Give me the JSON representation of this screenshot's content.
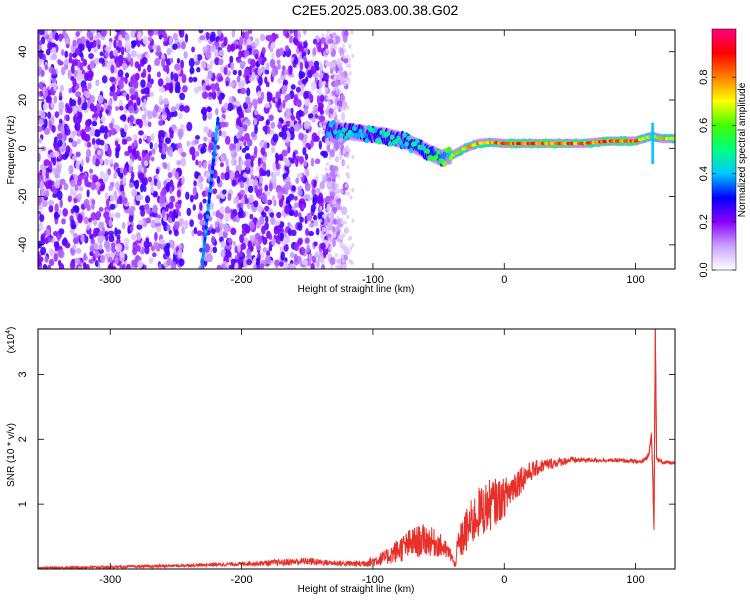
{
  "title": "C2E5.2025.083.00.38.G02",
  "chart_data": [
    {
      "type": "heatmap",
      "xlabel": "Height of straight line (km)",
      "ylabel": "Frequency (Hz)",
      "xlim": [
        -355,
        130
      ],
      "ylim": [
        -50,
        49
      ],
      "xticks": [
        -300,
        -200,
        -100,
        0,
        100
      ],
      "yticks": [
        -40,
        -20,
        0,
        20,
        40
      ],
      "colorbar": {
        "label": "Normalized spectral amplitude",
        "range": [
          0,
          1
        ],
        "ticks": [
          "0.0",
          "0.2",
          "0.4",
          "0.6",
          "0.8"
        ],
        "ticks_values": [
          0,
          0.2,
          0.4,
          0.6,
          0.8
        ],
        "colors": [
          "#ffffff",
          "#c9a3ff",
          "#8a00ff",
          "#0000ff",
          "#00c8ff",
          "#00ff80",
          "#40ff00",
          "#ffff00",
          "#ff8000",
          "#ff0000",
          "#ff007f"
        ]
      },
      "ridge": [
        {
          "x": -135,
          "y": 8,
          "amp": 0.45
        },
        {
          "x": -120,
          "y": 7,
          "amp": 0.5
        },
        {
          "x": -105,
          "y": 6,
          "amp": 0.5
        },
        {
          "x": -90,
          "y": 5,
          "amp": 0.5
        },
        {
          "x": -75,
          "y": 3,
          "amp": 0.5
        },
        {
          "x": -60,
          "y": -1,
          "amp": 0.55
        },
        {
          "x": -48,
          "y": -4,
          "amp": 0.6
        },
        {
          "x": -40,
          "y": -3,
          "amp": 0.75
        },
        {
          "x": -30,
          "y": 0,
          "amp": 0.8
        },
        {
          "x": -20,
          "y": 2,
          "amp": 0.85
        },
        {
          "x": -10,
          "y": 2.5,
          "amp": 0.85
        },
        {
          "x": 0,
          "y": 2,
          "amp": 0.95
        },
        {
          "x": 20,
          "y": 2,
          "amp": 0.95
        },
        {
          "x": 40,
          "y": 2,
          "amp": 0.95
        },
        {
          "x": 60,
          "y": 2,
          "amp": 0.9
        },
        {
          "x": 80,
          "y": 3,
          "amp": 0.95
        },
        {
          "x": 100,
          "y": 3,
          "amp": 0.95
        },
        {
          "x": 112,
          "y": 5,
          "amp": 0.7
        },
        {
          "x": 120,
          "y": 4,
          "amp": 0.8
        },
        {
          "x": 130,
          "y": 4,
          "amp": 0.8
        }
      ]
    },
    {
      "type": "line",
      "xlabel": "Height of straight line (km)",
      "ylabel": "SNR (10 * v/v)",
      "y_exponent_label": "(x10",
      "y_exponent_power": "4",
      "xlim": [
        -355,
        130
      ],
      "ylim": [
        0,
        3.7
      ],
      "xticks": [
        -300,
        -200,
        -100,
        0,
        100
      ],
      "yticks": [
        1,
        2,
        3
      ],
      "line_color": "#e8302a",
      "series": [
        {
          "x": [
            -355,
            -300,
            -250,
            -200,
            -170,
            -150,
            -130,
            -110,
            -100,
            -90,
            -80,
            -70,
            -60,
            -50,
            -45,
            -40,
            -38,
            -35,
            -30,
            -20,
            -10,
            0,
            10,
            20,
            30,
            50,
            70,
            90,
            105,
            110,
            112,
            113,
            114,
            115,
            116,
            120,
            130
          ],
          "y": [
            0.02,
            0.03,
            0.05,
            0.08,
            0.1,
            0.12,
            0.09,
            0.08,
            0.12,
            0.18,
            0.3,
            0.4,
            0.45,
            0.38,
            0.3,
            0.2,
            0.05,
            0.35,
            0.55,
            0.85,
            1.0,
            1.1,
            1.35,
            1.5,
            1.6,
            1.68,
            1.68,
            1.67,
            1.65,
            1.75,
            2.1,
            1.5,
            0.6,
            3.7,
            1.7,
            1.65,
            1.63
          ],
          "noise": [
            0.01,
            0.02,
            0.02,
            0.03,
            0.05,
            0.06,
            0.04,
            0.05,
            0.08,
            0.12,
            0.2,
            0.25,
            0.25,
            0.2,
            0.15,
            0.1,
            0.05,
            0.25,
            0.35,
            0.4,
            0.4,
            0.3,
            0.25,
            0.15,
            0.1,
            0.05,
            0.03,
            0.03,
            0.03,
            0.05,
            0.05,
            0.05,
            0.05,
            0.05,
            0.03,
            0.03,
            0.03
          ]
        }
      ]
    }
  ]
}
